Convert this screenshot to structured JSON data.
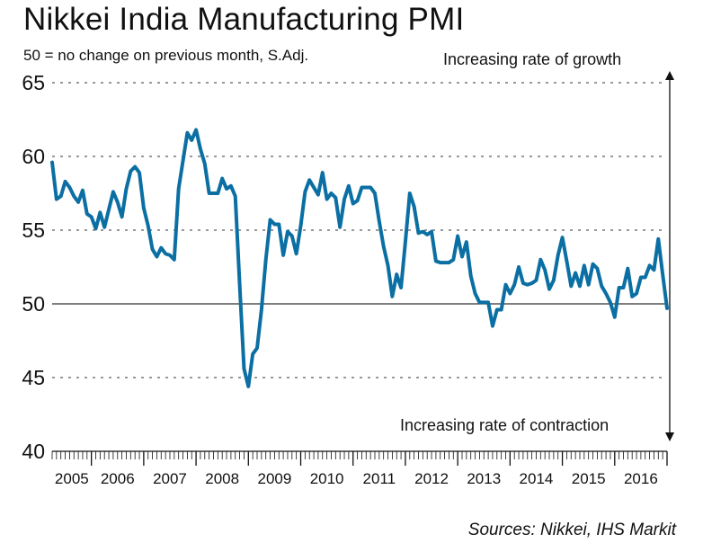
{
  "title": "Nikkei India Manufacturing PMI",
  "subtitle": "50 = no change on previous month, S.Adj.",
  "annotation_top": "Increasing rate of growth",
  "annotation_bottom": "Increasing rate of contraction",
  "source": "Sources: Nikkei, IHS Markit",
  "colors": {
    "line": "#0b6fa3",
    "text": "#111111",
    "grid": "#333333"
  },
  "chart_data": {
    "type": "line",
    "title": "Nikkei India Manufacturing PMI",
    "ylim": [
      40,
      65
    ],
    "yticks": [
      40,
      45,
      50,
      55,
      60,
      65
    ],
    "grid": "dashed horizontal at 45, 55, 60, 65; solid reference at 50",
    "xtick_labels": [
      "2005",
      "2006",
      "2007",
      "2008",
      "2009",
      "2010",
      "2011",
      "2012",
      "2013",
      "2014",
      "2015",
      "2016"
    ],
    "series": [
      {
        "frequency": "monthly",
        "start": "2005-04",
        "values": [
          59.6,
          57.1,
          57.3,
          58.3,
          57.9,
          57.3,
          56.9,
          57.7,
          56.1,
          55.9,
          55.1,
          56.2,
          55.2,
          56.4,
          57.6,
          56.9,
          55.9,
          57.8,
          59.0,
          59.3,
          58.9,
          56.5,
          55.3,
          53.7,
          53.2,
          53.8,
          53.4,
          53.3,
          53.0,
          57.8,
          59.7,
          61.6,
          61.1,
          61.8,
          60.5,
          59.5,
          57.5,
          57.5,
          57.5,
          58.5,
          57.8,
          58.0,
          57.3,
          51.3,
          45.6,
          44.4,
          46.6,
          47.0,
          49.6,
          53.0,
          55.7,
          55.4,
          55.4,
          53.3,
          54.9,
          54.6,
          53.4,
          55.3,
          57.6,
          58.4,
          57.9,
          57.4,
          58.9,
          57.1,
          57.5,
          57.2,
          55.2,
          57.1,
          58.0,
          56.8,
          57.0,
          57.9,
          57.9,
          57.9,
          57.5,
          55.6,
          53.9,
          52.6,
          50.5,
          52.0,
          51.1,
          54.2,
          57.5,
          56.6,
          54.8,
          54.9,
          54.7,
          54.9,
          52.9,
          52.8,
          52.8,
          52.8,
          53.0,
          54.6,
          53.2,
          54.2,
          51.9,
          50.7,
          50.1,
          50.1,
          50.1,
          48.5,
          49.6,
          49.6,
          51.3,
          50.7,
          51.3,
          52.5,
          51.4,
          51.3,
          51.4,
          51.6,
          53.0,
          52.3,
          51.0,
          51.6,
          53.3,
          54.5,
          52.9,
          51.2,
          52.1,
          51.2,
          52.6,
          51.3,
          52.7,
          52.4,
          51.2,
          50.7,
          50.1,
          49.1,
          51.1,
          51.1,
          52.4,
          50.5,
          50.7,
          51.8,
          51.8,
          52.6,
          52.3,
          54.4,
          52.0,
          49.7
        ]
      }
    ]
  }
}
